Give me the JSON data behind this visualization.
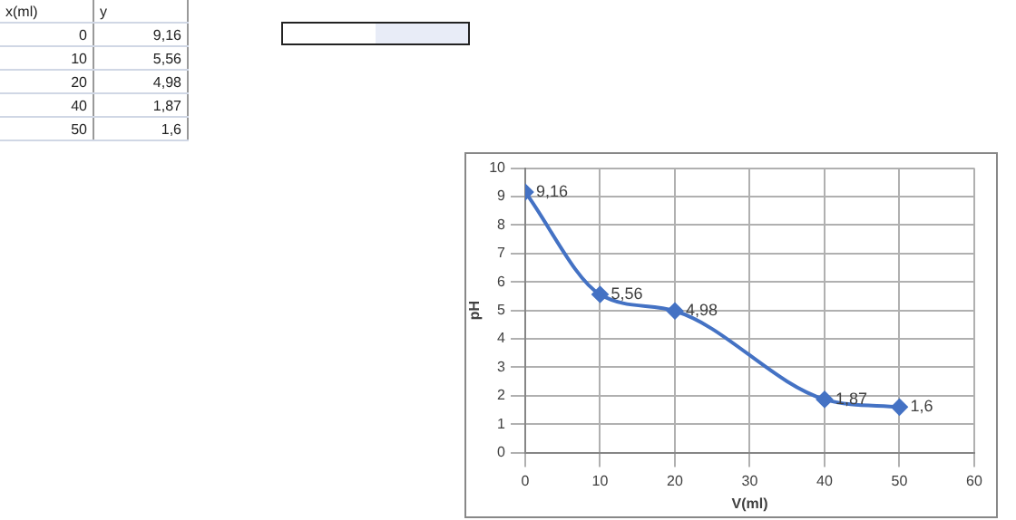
{
  "chart_data": {
    "type": "line",
    "xlabel": "V(ml)",
    "ylabel": "pH",
    "x": [
      0,
      10,
      20,
      40,
      50
    ],
    "series": [
      {
        "color": "#4472c4",
        "values": [
          9.16,
          5.56,
          4.98,
          1.87,
          1.6
        ],
        "value_labels": [
          "9,16",
          "5,56",
          "4,98",
          "1,87",
          "1,6"
        ]
      }
    ],
    "xlim": [
      0,
      60
    ],
    "xticks": [
      0,
      10,
      20,
      30,
      40,
      50,
      60
    ],
    "ylim": [
      0,
      10
    ],
    "yticks": [
      0,
      1,
      2,
      3,
      4,
      5,
      6,
      7,
      8,
      9,
      10
    ],
    "grid": true,
    "legend": false,
    "marker": "diamond",
    "line_style": "solid",
    "annotations": [
      "x(ml)",
      "y",
      "0",
      "10",
      "20",
      "40",
      "50"
    ]
  }
}
